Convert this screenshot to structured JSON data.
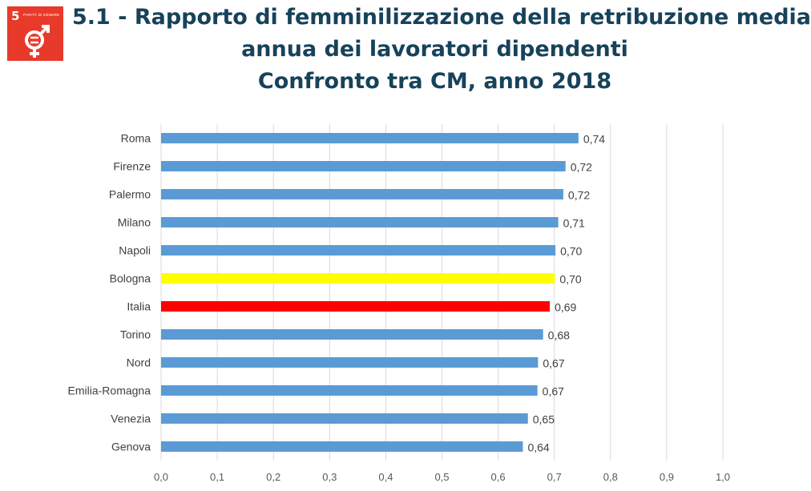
{
  "badge": {
    "number": "5",
    "label": "PARITÀ DI GENERE"
  },
  "title": {
    "line1": "5.1 - Rapporto di femminilizzazione della retribuzione media",
    "line2": "annua dei lavoratori dipendenti",
    "line3": "Confronto tra CM, anno 2018"
  },
  "colors": {
    "default": "#5b9bd5",
    "bologna": "#ffff00",
    "italia": "#ff0000",
    "title": "#17425a",
    "badge": "#e83a2b"
  },
  "chart_data": {
    "type": "bar",
    "orientation": "horizontal",
    "categories": [
      "Roma",
      "Firenze",
      "Palermo",
      "Milano",
      "Napoli",
      "Bologna",
      "Italia",
      "Torino",
      "Nord",
      "Emilia-Romagna",
      "Venezia",
      "Genova"
    ],
    "values": [
      0.743,
      0.72,
      0.716,
      0.707,
      0.702,
      0.701,
      0.692,
      0.68,
      0.671,
      0.67,
      0.653,
      0.644
    ],
    "value_labels": [
      "0,74",
      "0,72",
      "0,72",
      "0,71",
      "0,70",
      "0,70",
      "0,69",
      "0,68",
      "0,67",
      "0,67",
      "0,65",
      "0,64"
    ],
    "bar_colors": [
      "#5b9bd5",
      "#5b9bd5",
      "#5b9bd5",
      "#5b9bd5",
      "#5b9bd5",
      "#ffff00",
      "#ff0000",
      "#5b9bd5",
      "#5b9bd5",
      "#5b9bd5",
      "#5b9bd5",
      "#5b9bd5"
    ],
    "xlim": [
      0,
      1.0
    ],
    "xticks": [
      0,
      0.1,
      0.2,
      0.3,
      0.4,
      0.5,
      0.6,
      0.7,
      0.8,
      0.9,
      1.0
    ],
    "xtick_labels": [
      "0,0",
      "0,1",
      "0,2",
      "0,3",
      "0,4",
      "0,5",
      "0,6",
      "0,7",
      "0,8",
      "0,9",
      "1,0"
    ],
    "grid": "vertical",
    "title": "",
    "xlabel": "",
    "ylabel": ""
  }
}
